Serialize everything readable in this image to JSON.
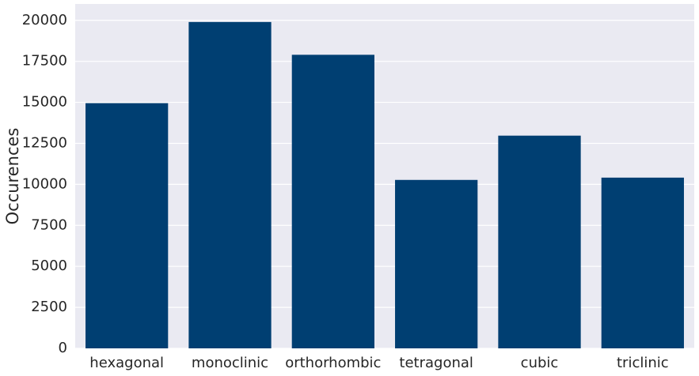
{
  "chart_data": {
    "type": "bar",
    "y_label": "Occurences",
    "categories": [
      "hexagonal",
      "monoclinic",
      "orthorhombic",
      "tetragonal",
      "cubic",
      "triclinic"
    ],
    "values": [
      14950,
      19900,
      17900,
      10270,
      12970,
      10410
    ],
    "color": "#003f72",
    "ylim": [
      0,
      21000
    ],
    "yticks": [
      0,
      2500,
      5000,
      7500,
      10000,
      12500,
      15000,
      17500,
      20000
    ],
    "grid": true
  }
}
